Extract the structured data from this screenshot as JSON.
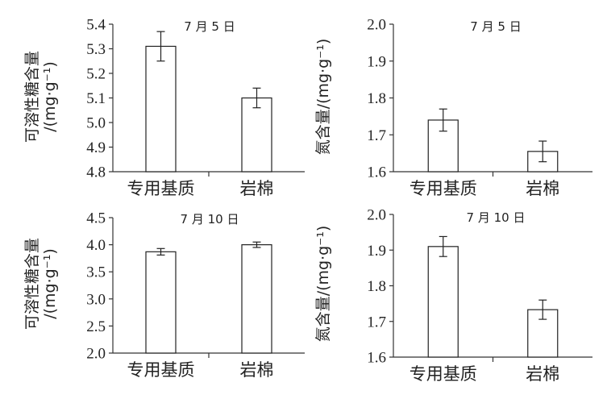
{
  "chart_data": [
    {
      "type": "bar",
      "title": "7 月 5 日",
      "ylabel": "可溶性糖含量",
      "ylabel_unit": "/(mg·g⁻¹)",
      "categories": [
        "专用基质",
        "岩棉"
      ],
      "values": [
        5.31,
        5.1
      ],
      "errors": [
        0.06,
        0.04
      ],
      "ylim": [
        4.8,
        5.4
      ],
      "yticks": [
        "4.8",
        "4.9",
        "5.0",
        "5.1",
        "5.2",
        "5.3",
        "5.4"
      ],
      "grid": false
    },
    {
      "type": "bar",
      "title": "7 月 5 日",
      "ylabel": "氮含量",
      "ylabel_unit": "/(mg·g⁻¹)",
      "categories": [
        "专用基质",
        "岩棉"
      ],
      "values": [
        1.74,
        1.655
      ],
      "errors": [
        0.03,
        0.028
      ],
      "ylim": [
        1.6,
        2.0
      ],
      "yticks": [
        "1.6",
        "1.7",
        "1.8",
        "1.9",
        "2.0"
      ],
      "grid": false
    },
    {
      "type": "bar",
      "title": "7 月 10 日",
      "ylabel": "可溶性糖含量",
      "ylabel_unit": "/(mg·g⁻¹)",
      "categories": [
        "专用基质",
        "岩棉"
      ],
      "values": [
        3.87,
        4.0
      ],
      "errors": [
        0.06,
        0.05
      ],
      "ylim": [
        2.0,
        4.5
      ],
      "yticks": [
        "2.0",
        "2.5",
        "3.0",
        "3.5",
        "4.0",
        "4.5"
      ],
      "grid": false
    },
    {
      "type": "bar",
      "title": "7 月 10 日",
      "ylabel": "氮含量",
      "ylabel_unit": "/(mg·g⁻¹)",
      "categories": [
        "专用基质",
        "岩棉"
      ],
      "values": [
        1.91,
        1.733
      ],
      "errors": [
        0.028,
        0.027
      ],
      "ylim": [
        1.6,
        2.0
      ],
      "yticks": [
        "1.6",
        "1.7",
        "1.8",
        "1.9",
        "2.0"
      ],
      "grid": false
    }
  ]
}
